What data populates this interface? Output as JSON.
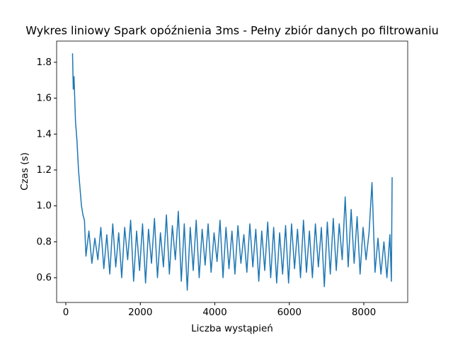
{
  "chart_data": {
    "type": "line",
    "title": "Wykres liniowy Spark opóźnienia 3ms - Pełny zbiór danych po filtrowaniu",
    "xlabel": "Liczba wystąpień",
    "ylabel": "Czas (s)",
    "color": "#1f77b4",
    "x": [
      180,
      200,
      220,
      260,
      300,
      340,
      380,
      420,
      460,
      500,
      540,
      620,
      700,
      780,
      860,
      940,
      1020,
      1100,
      1180,
      1260,
      1340,
      1420,
      1500,
      1580,
      1660,
      1740,
      1820,
      1900,
      1980,
      2060,
      2140,
      2220,
      2300,
      2380,
      2460,
      2540,
      2620,
      2700,
      2780,
      2860,
      2940,
      3020,
      3100,
      3180,
      3260,
      3340,
      3420,
      3500,
      3580,
      3660,
      3740,
      3820,
      3900,
      3980,
      4060,
      4140,
      4220,
      4300,
      4380,
      4460,
      4540,
      4620,
      4700,
      4780,
      4860,
      4940,
      5020,
      5100,
      5180,
      5260,
      5340,
      5420,
      5500,
      5580,
      5660,
      5740,
      5820,
      5900,
      5980,
      6060,
      6140,
      6220,
      6300,
      6380,
      6460,
      6540,
      6620,
      6700,
      6780,
      6860,
      6940,
      7020,
      7100,
      7180,
      7260,
      7340,
      7420,
      7500,
      7580,
      7660,
      7740,
      7820,
      7900,
      7980,
      8060,
      8140,
      8220,
      8300,
      8380,
      8460,
      8540,
      8620,
      8700,
      8740,
      8760
    ],
    "values": [
      1.85,
      1.65,
      1.72,
      1.47,
      1.36,
      1.2,
      1.1,
      1.0,
      0.95,
      0.92,
      0.72,
      0.86,
      0.68,
      0.82,
      0.7,
      0.88,
      0.65,
      0.84,
      0.62,
      0.9,
      0.66,
      0.85,
      0.6,
      0.88,
      0.7,
      0.92,
      0.58,
      0.86,
      0.64,
      0.9,
      0.57,
      0.87,
      0.68,
      0.93,
      0.6,
      0.85,
      0.66,
      0.95,
      0.62,
      0.89,
      0.7,
      0.97,
      0.58,
      0.9,
      0.53,
      0.88,
      0.64,
      0.92,
      0.6,
      0.87,
      0.67,
      0.9,
      0.63,
      0.85,
      0.69,
      0.92,
      0.6,
      0.88,
      0.65,
      0.86,
      0.62,
      0.89,
      0.68,
      0.84,
      0.63,
      0.9,
      0.66,
      0.87,
      0.58,
      0.86,
      0.64,
      0.91,
      0.6,
      0.88,
      0.57,
      0.85,
      0.62,
      0.89,
      0.57,
      0.9,
      0.65,
      0.87,
      0.6,
      0.92,
      0.63,
      0.86,
      0.6,
      0.9,
      0.66,
      0.88,
      0.55,
      0.91,
      0.62,
      0.93,
      0.64,
      0.9,
      0.7,
      1.05,
      0.66,
      0.98,
      0.68,
      0.94,
      0.62,
      0.88,
      0.7,
      0.85,
      1.13,
      0.63,
      0.82,
      0.62,
      0.8,
      0.6,
      0.84,
      0.58,
      1.16
    ],
    "xlim": [
      -247,
      9178
    ],
    "ylim": [
      0.462,
      1.918
    ],
    "xticks": [
      0,
      2000,
      4000,
      6000,
      8000
    ],
    "yticks": [
      0.6,
      0.8,
      {
        "value": 1,
        "label": "1.0"
      },
      1.2,
      1.4,
      1.6,
      1.8
    ]
  }
}
